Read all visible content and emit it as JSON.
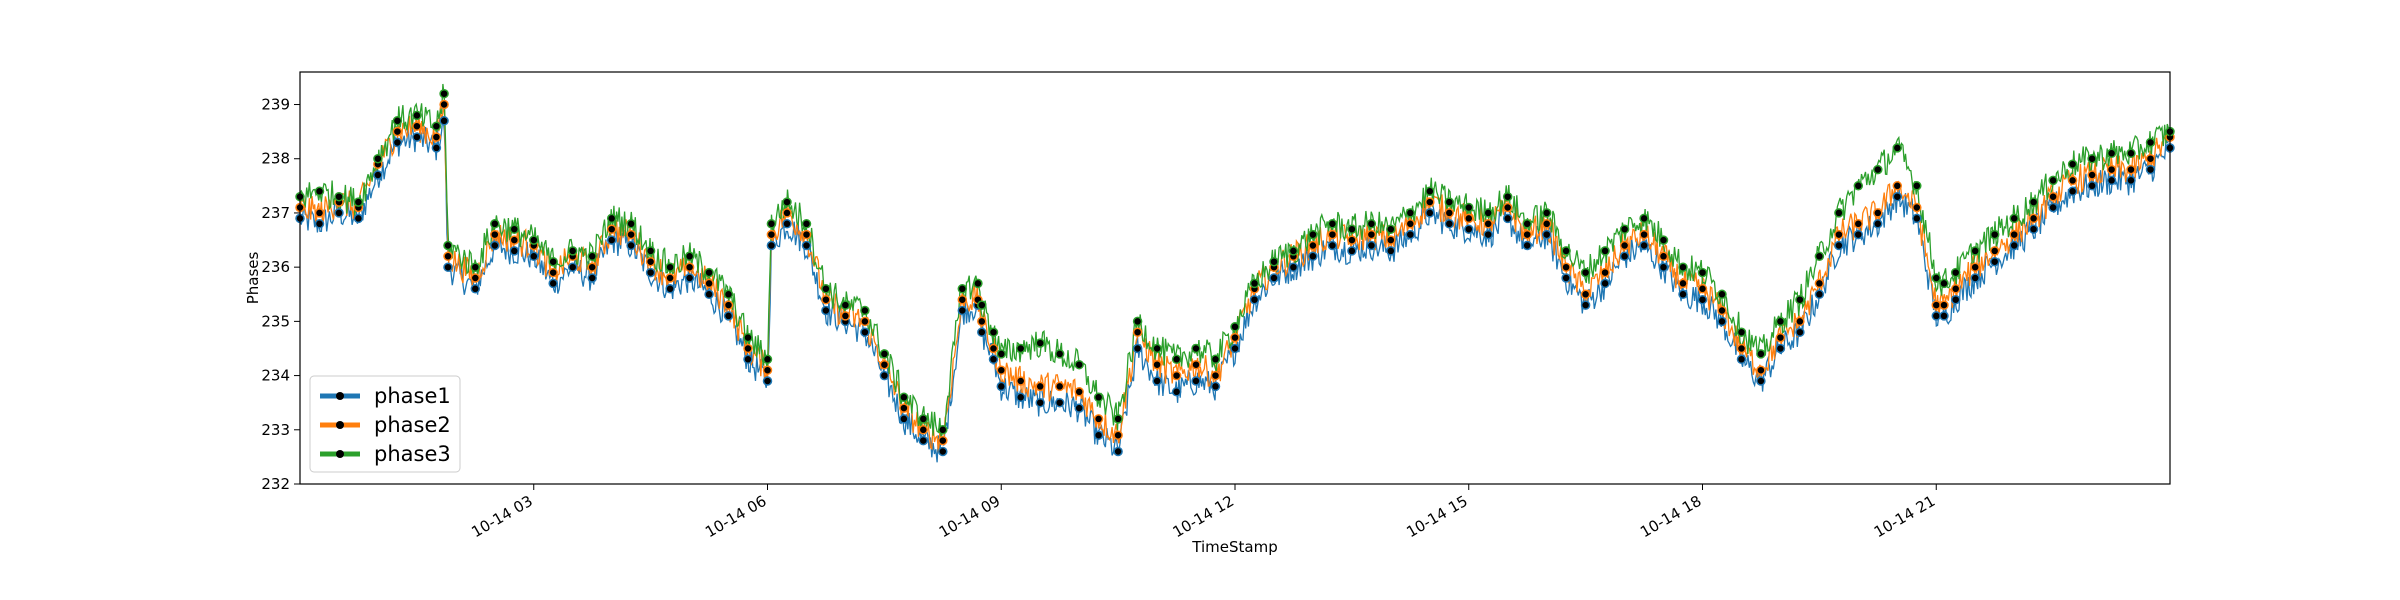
{
  "chart_data": {
    "type": "line",
    "title": "",
    "xlabel": "TimeStamp",
    "ylabel": "Phases",
    "xlim": [
      "10-14 00:00",
      "23:59"
    ],
    "ylim": [
      232,
      239.6
    ],
    "x_ticks": [
      "10-14 03",
      "10-14 06",
      "10-14 09",
      "10-14 12",
      "10-14 15",
      "10-14 18",
      "10-14 21"
    ],
    "x_tick_hours": [
      3,
      6,
      9,
      12,
      15,
      18,
      21
    ],
    "y_ticks": [
      232,
      233,
      234,
      235,
      236,
      237,
      238,
      239
    ],
    "grid": false,
    "legend_position": "lower-left",
    "marker": "black filled circle",
    "series": [
      {
        "name": "phase1",
        "color": "#1f77b4",
        "x_hours": [
          0.0,
          0.25,
          0.5,
          0.75,
          1.0,
          1.25,
          1.5,
          1.75,
          1.85,
          1.9,
          2.25,
          2.5,
          2.75,
          3.0,
          3.25,
          3.5,
          3.75,
          4.0,
          4.25,
          4.5,
          4.75,
          5.0,
          5.25,
          5.5,
          5.75,
          6.0,
          6.05,
          6.25,
          6.5,
          6.75,
          7.0,
          7.25,
          7.5,
          7.75,
          8.0,
          8.25,
          8.5,
          8.7,
          8.75,
          8.9,
          9.0,
          9.25,
          9.5,
          9.75,
          10.0,
          10.25,
          10.5,
          10.75,
          11.0,
          11.25,
          11.5,
          11.75,
          12.0,
          12.25,
          12.5,
          12.75,
          13.0,
          13.25,
          13.5,
          13.75,
          14.0,
          14.25,
          14.5,
          14.75,
          15.0,
          15.25,
          15.5,
          15.75,
          16.0,
          16.25,
          16.5,
          16.75,
          17.0,
          17.25,
          17.5,
          17.75,
          18.0,
          18.25,
          18.5,
          18.75,
          19.0,
          19.25,
          19.5,
          19.75,
          20.0,
          20.25,
          20.5,
          20.75,
          21.0,
          21.1,
          21.25,
          21.5,
          21.75,
          22.0,
          22.25,
          22.5,
          22.75,
          23.0,
          23.25,
          23.5,
          23.75,
          24.0
        ],
        "values": [
          236.9,
          236.8,
          237.0,
          236.9,
          237.7,
          238.3,
          238.4,
          238.2,
          238.7,
          236.0,
          235.6,
          236.4,
          236.3,
          236.2,
          235.7,
          236.0,
          235.8,
          236.5,
          236.4,
          235.9,
          235.6,
          235.8,
          235.5,
          235.1,
          234.3,
          233.9,
          236.4,
          236.8,
          236.4,
          235.2,
          235.0,
          234.8,
          234.0,
          233.2,
          232.8,
          232.6,
          235.2,
          235.3,
          234.8,
          234.3,
          233.8,
          233.6,
          233.5,
          233.5,
          233.4,
          232.9,
          232.6,
          234.5,
          233.9,
          233.7,
          233.9,
          233.8,
          234.5,
          235.4,
          235.8,
          236.0,
          236.2,
          236.4,
          236.3,
          236.4,
          236.3,
          236.6,
          237.0,
          236.8,
          236.7,
          236.6,
          236.9,
          236.4,
          236.6,
          235.8,
          235.3,
          235.7,
          236.2,
          236.4,
          236.0,
          235.5,
          235.4,
          235.0,
          234.3,
          233.9,
          234.5,
          234.8,
          235.5,
          236.4,
          236.6,
          236.8,
          237.3,
          236.9,
          235.1,
          235.1,
          235.4,
          235.8,
          236.1,
          236.4,
          236.7,
          237.1,
          237.4,
          237.5,
          237.6,
          237.6,
          237.8,
          238.2
        ]
      },
      {
        "name": "phase2",
        "color": "#ff7f0e",
        "x_hours": [
          0.0,
          0.25,
          0.5,
          0.75,
          1.0,
          1.25,
          1.5,
          1.75,
          1.85,
          1.9,
          2.25,
          2.5,
          2.75,
          3.0,
          3.25,
          3.5,
          3.75,
          4.0,
          4.25,
          4.5,
          4.75,
          5.0,
          5.25,
          5.5,
          5.75,
          6.0,
          6.05,
          6.25,
          6.5,
          6.75,
          7.0,
          7.25,
          7.5,
          7.75,
          8.0,
          8.25,
          8.5,
          8.7,
          8.75,
          8.9,
          9.0,
          9.25,
          9.5,
          9.75,
          10.0,
          10.25,
          10.5,
          10.75,
          11.0,
          11.25,
          11.5,
          11.75,
          12.0,
          12.25,
          12.5,
          12.75,
          13.0,
          13.25,
          13.5,
          13.75,
          14.0,
          14.25,
          14.5,
          14.75,
          15.0,
          15.25,
          15.5,
          15.75,
          16.0,
          16.25,
          16.5,
          16.75,
          17.0,
          17.25,
          17.5,
          17.75,
          18.0,
          18.25,
          18.5,
          18.75,
          19.0,
          19.25,
          19.5,
          19.75,
          20.0,
          20.25,
          20.5,
          20.75,
          21.0,
          21.1,
          21.25,
          21.5,
          21.75,
          22.0,
          22.25,
          22.5,
          22.75,
          23.0,
          23.25,
          23.5,
          23.75,
          24.0
        ],
        "values": [
          237.1,
          237.0,
          237.2,
          237.1,
          237.9,
          238.5,
          238.6,
          238.4,
          239.0,
          236.2,
          235.8,
          236.6,
          236.5,
          236.4,
          235.9,
          236.2,
          236.0,
          236.7,
          236.6,
          236.1,
          235.8,
          236.0,
          235.7,
          235.3,
          234.5,
          234.1,
          236.6,
          237.0,
          236.6,
          235.4,
          235.1,
          235.0,
          234.2,
          233.4,
          233.0,
          232.8,
          235.4,
          235.4,
          235.0,
          234.5,
          234.1,
          233.9,
          233.8,
          233.8,
          233.7,
          233.2,
          232.9,
          234.8,
          234.2,
          234.0,
          234.2,
          234.0,
          234.7,
          235.6,
          236.0,
          236.2,
          236.4,
          236.6,
          236.5,
          236.6,
          236.5,
          236.8,
          237.2,
          237.0,
          236.9,
          236.8,
          237.1,
          236.6,
          236.8,
          236.0,
          235.5,
          235.9,
          236.4,
          236.6,
          236.2,
          235.7,
          235.6,
          235.2,
          234.5,
          234.1,
          234.7,
          235.0,
          235.7,
          236.6,
          236.8,
          237.0,
          237.5,
          237.1,
          235.3,
          235.3,
          235.6,
          236.0,
          236.3,
          236.6,
          236.9,
          237.3,
          237.6,
          237.7,
          237.8,
          237.8,
          238.0,
          238.4
        ]
      },
      {
        "name": "phase3",
        "color": "#2ca02c",
        "x_hours": [
          0.0,
          0.25,
          0.5,
          0.75,
          1.0,
          1.25,
          1.5,
          1.75,
          1.85,
          1.9,
          2.25,
          2.5,
          2.75,
          3.0,
          3.25,
          3.5,
          3.75,
          4.0,
          4.25,
          4.5,
          4.75,
          5.0,
          5.25,
          5.5,
          5.75,
          6.0,
          6.05,
          6.25,
          6.5,
          6.75,
          7.0,
          7.25,
          7.5,
          7.75,
          8.0,
          8.25,
          8.5,
          8.7,
          8.75,
          8.9,
          9.0,
          9.25,
          9.5,
          9.75,
          10.0,
          10.25,
          10.5,
          10.75,
          11.0,
          11.25,
          11.5,
          11.75,
          12.0,
          12.25,
          12.5,
          12.75,
          13.0,
          13.25,
          13.5,
          13.75,
          14.0,
          14.25,
          14.5,
          14.75,
          15.0,
          15.25,
          15.5,
          15.75,
          16.0,
          16.25,
          16.5,
          16.75,
          17.0,
          17.25,
          17.5,
          17.75,
          18.0,
          18.25,
          18.5,
          18.75,
          19.0,
          19.25,
          19.5,
          19.75,
          20.0,
          20.25,
          20.5,
          20.75,
          21.0,
          21.1,
          21.25,
          21.5,
          21.75,
          22.0,
          22.25,
          22.5,
          22.75,
          23.0,
          23.25,
          23.5,
          23.75,
          24.0
        ],
        "values": [
          237.3,
          237.4,
          237.3,
          237.2,
          238.0,
          238.7,
          238.8,
          238.6,
          239.2,
          236.4,
          236.0,
          236.8,
          236.7,
          236.5,
          236.1,
          236.3,
          236.2,
          236.9,
          236.8,
          236.3,
          236.0,
          236.2,
          235.9,
          235.5,
          234.7,
          234.3,
          236.8,
          237.2,
          236.8,
          235.6,
          235.3,
          235.2,
          234.4,
          233.6,
          233.2,
          233.0,
          235.6,
          235.7,
          235.3,
          234.8,
          234.4,
          234.5,
          234.6,
          234.4,
          234.2,
          233.6,
          233.2,
          235.0,
          234.5,
          234.3,
          234.5,
          234.3,
          234.9,
          235.7,
          236.1,
          236.3,
          236.6,
          236.8,
          236.7,
          236.8,
          236.7,
          237.0,
          237.4,
          237.2,
          237.1,
          237.0,
          237.3,
          236.8,
          237.0,
          236.3,
          235.9,
          236.3,
          236.7,
          236.9,
          236.5,
          236.0,
          235.9,
          235.5,
          234.8,
          234.4,
          235.0,
          235.4,
          236.2,
          237.0,
          237.5,
          237.8,
          238.2,
          237.5,
          235.8,
          235.7,
          235.9,
          236.3,
          236.6,
          236.9,
          237.2,
          237.6,
          237.9,
          238.0,
          238.1,
          238.1,
          238.3,
          238.5
        ]
      }
    ]
  }
}
